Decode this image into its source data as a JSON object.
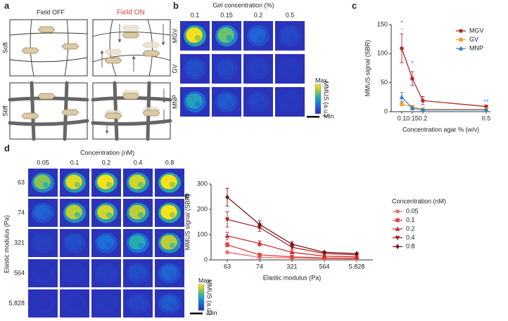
{
  "panel_a": {
    "letter": "a",
    "columns": [
      "Field OFF",
      "Field ON"
    ],
    "rows": [
      "Soft",
      "Stiff"
    ]
  },
  "panel_b": {
    "letter": "b",
    "title": "Gel concentration (%)",
    "columns": [
      "0.1",
      "0.15",
      "0.2",
      "0.5"
    ],
    "rows": [
      "MGV",
      "GV",
      "MNP"
    ],
    "intensity": [
      [
        1.0,
        0.7,
        0.25,
        0.12
      ],
      [
        0.15,
        0.12,
        0.08,
        0.05
      ],
      [
        0.5,
        0.2,
        0.1,
        0.05
      ]
    ],
    "colorbar": {
      "label": "MMUS (a.u.)",
      "max": "Max",
      "min": "Min"
    }
  },
  "panel_d": {
    "letter": "d",
    "title": "Concentration (nM)",
    "y_label": "Elastic modulus (Pa)",
    "columns": [
      "0.05",
      "0.1",
      "0.2",
      "0.4",
      "0.8"
    ],
    "rows": [
      "63",
      "74",
      "321",
      "564",
      "5,828"
    ],
    "intensity": [
      [
        0.75,
        0.95,
        1.0,
        0.9,
        1.0
      ],
      [
        0.25,
        0.85,
        0.9,
        0.85,
        1.0
      ],
      [
        0.08,
        0.15,
        0.3,
        0.55,
        0.85
      ],
      [
        0.03,
        0.05,
        0.08,
        0.15,
        0.25
      ],
      [
        0.02,
        0.03,
        0.05,
        0.1,
        0.2
      ]
    ],
    "colorbar": {
      "label": "MMUS (a.u.)",
      "max": "Max",
      "min": "Min"
    }
  },
  "chart_data": [
    {
      "type": "line",
      "letter": "c",
      "x_label": "Concentration agar % (w/v)",
      "y_label": "MMUS signal (SBR)",
      "x": [
        0.1,
        0.15,
        0.2,
        0.5
      ],
      "xlim": [
        0.05,
        0.52
      ],
      "xticks": [
        0.1,
        0.15,
        0.2,
        0.5
      ],
      "ylim": [
        0,
        150
      ],
      "yticks": [
        0,
        50,
        100,
        150
      ],
      "legend": "top-right",
      "series": [
        {
          "name": "MGV",
          "color": "#b5272e",
          "marker": "circle",
          "values": [
            109,
            57,
            19,
            9
          ],
          "errors": [
            25,
            12,
            7,
            2
          ]
        },
        {
          "name": "GV",
          "color": "#f2a33a",
          "marker": "square",
          "values": [
            13,
            8,
            4,
            4
          ],
          "errors": [
            3,
            2,
            1,
            1
          ]
        },
        {
          "name": "MNP",
          "color": "#3a7dc9",
          "marker": "triangle",
          "values": [
            25,
            6,
            3,
            3
          ],
          "errors": [
            8,
            3,
            1,
            1
          ]
        }
      ],
      "annotations": [
        {
          "text": "*",
          "x": 0.1,
          "y": 152,
          "color": "#3a7dc9"
        },
        {
          "text": "*",
          "x": 0.1,
          "y": 139,
          "color": "#f2a33a"
        },
        {
          "text": "*",
          "x": 0.15,
          "y": 83,
          "color": "#3a7dc9"
        },
        {
          "text": "**",
          "x": 0.5,
          "y": 16,
          "color": "#3a7dc9"
        }
      ]
    },
    {
      "type": "line",
      "letter": "e",
      "x_label": "Elastic modulus (Pa)",
      "y_label": "MMUS signal (SBR)",
      "categories": [
        "63",
        "74",
        "321",
        "564",
        "5,828"
      ],
      "ylim": [
        0,
        300
      ],
      "yticks": [
        0,
        100,
        200,
        300
      ],
      "legend_title": "Concentration (nM)",
      "legend": "right",
      "series": [
        {
          "name": "0.05",
          "color": "#f26b6b",
          "marker": "circle",
          "values": [
            30,
            10,
            8,
            5,
            4
          ],
          "errors": [
            4,
            2,
            2,
            1,
            1
          ]
        },
        {
          "name": "0.1",
          "color": "#e04545",
          "marker": "square",
          "values": [
            60,
            20,
            12,
            8,
            7
          ],
          "errors": [
            8,
            4,
            3,
            2,
            1
          ]
        },
        {
          "name": "0.2",
          "color": "#c93030",
          "marker": "triangle",
          "values": [
            95,
            65,
            30,
            15,
            12
          ],
          "errors": [
            15,
            10,
            6,
            3,
            2
          ]
        },
        {
          "name": "0.4",
          "color": "#a52323",
          "marker": "triangle-down",
          "values": [
            160,
            128,
            50,
            25,
            20
          ],
          "errors": [
            30,
            15,
            8,
            3,
            2
          ]
        },
        {
          "name": "0.8",
          "color": "#761616",
          "marker": "diamond",
          "values": [
            248,
            140,
            62,
            30,
            25
          ],
          "errors": [
            35,
            15,
            10,
            3,
            2
          ]
        }
      ]
    }
  ]
}
